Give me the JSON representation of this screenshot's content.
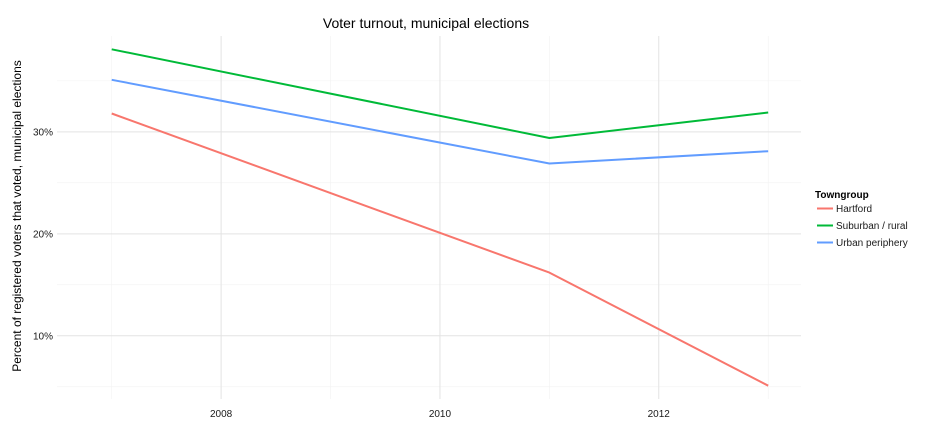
{
  "chart_data": {
    "type": "line",
    "title": "Voter turnout, municipal elections",
    "xlabel": "",
    "ylabel": "Percent of registered voters that voted, municipal elections",
    "x": [
      2007,
      2011,
      2013
    ],
    "xlim": [
      2006.5,
      2013.3
    ],
    "ylim": [
      3.8,
      39.4
    ],
    "x_ticks": [
      2008,
      2010,
      2012
    ],
    "x_tick_labels": [
      "2008",
      "2010",
      "2012"
    ],
    "y_ticks": [
      10,
      20,
      30
    ],
    "y_tick_labels": [
      "10%",
      "20%",
      "30%"
    ],
    "grid": true,
    "legend": {
      "title": "Towngroup",
      "position": "right"
    },
    "series": [
      {
        "name": "Hartford",
        "color": "#f8766d",
        "values": [
          31.8,
          16.2,
          5.1
        ]
      },
      {
        "name": "Suburban / rural",
        "color": "#00ba38",
        "values": [
          38.1,
          29.4,
          31.9
        ]
      },
      {
        "name": "Urban periphery",
        "color": "#619cff",
        "values": [
          35.1,
          26.9,
          28.1
        ]
      }
    ]
  }
}
